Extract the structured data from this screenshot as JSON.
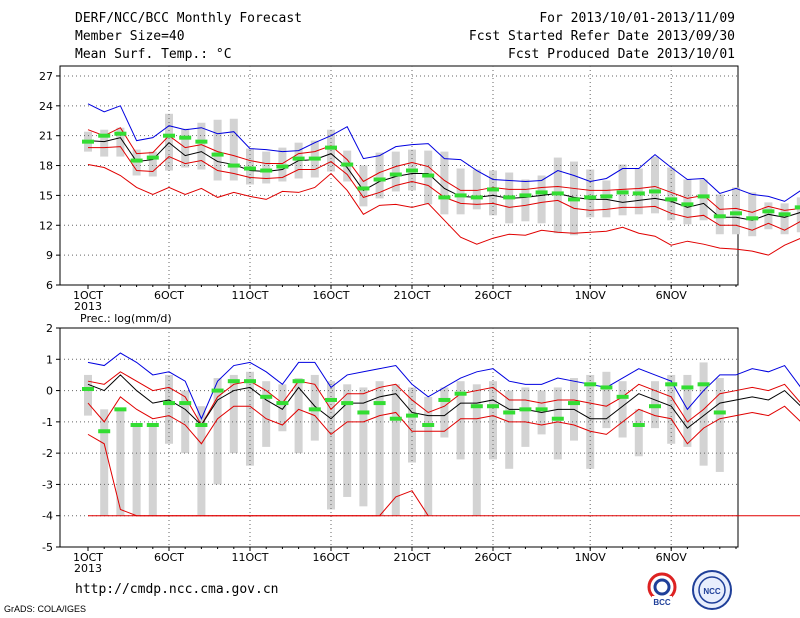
{
  "header": {
    "title": "DERF/NCC/BCC Monthly Forecast",
    "member_size": "Member Size=40",
    "variable": "Mean Surf. Temp.: °C",
    "for_period": "For 2013/10/01-2013/11/09",
    "fcst_started": "Fcst Started Refer Date 2013/09/30",
    "fcst_produced": "Fcst Produced Date 2013/10/01"
  },
  "footer": {
    "url": "http://cmdp.ncc.cma.gov.cn",
    "credit": "GrADS: COLA/IGES",
    "logos": [
      "BCC",
      "NCC"
    ]
  },
  "colors": {
    "bar": "#d3d3d3",
    "obs": "#33dd33",
    "mean": "#000000",
    "spread": "#e00000",
    "envelope": "#0000e0",
    "grid": "#666666"
  },
  "chart_data": [
    {
      "type": "line",
      "label": "",
      "x_start_day": 1,
      "x_tick_labels": [
        "1OCT",
        "6OCT",
        "11OCT",
        "16OCT",
        "21OCT",
        "26OCT",
        "1NOV",
        "6NOV"
      ],
      "x_year_label": "2013",
      "ylim": [
        6,
        28
      ],
      "yticks": [
        6,
        9,
        12,
        15,
        18,
        21,
        24,
        27
      ],
      "series": [
        {
          "role": "max",
          "values": [
            24.2,
            23.4,
            24,
            20.5,
            20.8,
            22,
            21.6,
            21.8,
            21.2,
            21.4,
            19.7,
            19.6,
            19.4,
            19.5,
            20.3,
            21,
            21.9,
            18.7,
            19,
            19.9,
            20.1,
            20.2,
            18.7,
            18.6,
            17.5,
            16.6,
            16.5,
            16.4,
            16.5,
            17.5,
            17,
            16.4,
            16.7,
            17.7,
            17.7,
            19.1,
            17.8,
            16.6,
            16.7,
            15.2,
            15.7,
            15.1,
            14.9,
            14.4,
            15.5,
            16.5
          ]
        },
        {
          "role": "upper",
          "values": [
            21.6,
            21,
            21.8,
            19.2,
            19.3,
            21,
            19.8,
            20.1,
            19.4,
            19,
            18.5,
            18.2,
            18.2,
            19.2,
            19.4,
            20,
            18.6,
            16.4,
            17.3,
            17.9,
            18.3,
            17.9,
            16.5,
            15.5,
            15.5,
            15.8,
            15.6,
            15.6,
            15.8,
            15.9,
            15.7,
            15.5,
            15.5,
            15.6,
            15.7,
            15.9,
            15.3,
            14.7,
            15,
            13.6,
            13.7,
            13.3,
            13.9,
            13.5,
            13.7,
            14.1
          ]
        },
        {
          "role": "mean",
          "values": [
            20.5,
            20.4,
            20.8,
            18.4,
            18.6,
            20.3,
            19,
            19.4,
            18.4,
            18.1,
            17.5,
            17.4,
            17.6,
            18.5,
            18.6,
            19.2,
            17.8,
            15.5,
            16.4,
            16.9,
            17.2,
            17.2,
            15.7,
            14.9,
            14.8,
            15,
            14.7,
            14.8,
            15,
            15.2,
            14.8,
            14.6,
            14.6,
            14.3,
            14.5,
            14.7,
            14.4,
            13.8,
            14.2,
            12.8,
            12.8,
            12.5,
            13.1,
            12.8,
            13.3,
            13.5
          ]
        },
        {
          "role": "lower",
          "values": [
            19.8,
            19.8,
            19.9,
            17.5,
            17.4,
            18.9,
            18.2,
            18.5,
            17.5,
            17.2,
            16.8,
            16.7,
            16.8,
            17.6,
            17.6,
            18.4,
            17.1,
            14.8,
            15.3,
            16,
            16.4,
            16,
            14.8,
            14.2,
            14.1,
            14.2,
            13.8,
            14,
            14.3,
            14.5,
            13.7,
            13.5,
            13.6,
            13.8,
            13.8,
            13.9,
            13.2,
            12.8,
            13,
            12,
            12,
            11.5,
            12.2,
            11.5,
            12.4,
            12.7
          ]
        },
        {
          "role": "min",
          "values": [
            18.1,
            17.8,
            17,
            15.8,
            15.1,
            15.8,
            15.1,
            15.7,
            14.8,
            15.3,
            14.9,
            14.6,
            15.4,
            15.3,
            15.8,
            17.2,
            15.5,
            13.1,
            14,
            14.1,
            13.8,
            14.2,
            12.5,
            10.8,
            10.1,
            10.7,
            11.1,
            11,
            11.5,
            11.3,
            11.2,
            11.3,
            11.4,
            11.8,
            11.2,
            10.9,
            10,
            10.4,
            10.1,
            9.7,
            9.6,
            9.4,
            9,
            10,
            10.7,
            10.1
          ]
        },
        {
          "role": "obs",
          "values": [
            20.4,
            21,
            21.2,
            18.5,
            18.8,
            21,
            20.8,
            20.4,
            19.1,
            18,
            17.7,
            17.5,
            17.9,
            18.7,
            18.7,
            19.8,
            18.1,
            15.7,
            16.6,
            17.1,
            17.5,
            17,
            14.8,
            15,
            14.8,
            15.6,
            14.8,
            15,
            15.3,
            15.2,
            14.6,
            14.8,
            14.9,
            15.3,
            15.2,
            15.4,
            14.6,
            14.1,
            14.9,
            12.9,
            13.2,
            12.7,
            13.4,
            13.1,
            13.8,
            13.8
          ]
        },
        {
          "role": "bar_top",
          "values": [
            21.4,
            21.6,
            21.8,
            19.6,
            19.4,
            23.2,
            21.7,
            22.3,
            22.6,
            22.7,
            19.7,
            19.4,
            19.8,
            20.3,
            20.5,
            21.6,
            19.5,
            18,
            19.3,
            19.4,
            19.6,
            19.5,
            19.4,
            17.7,
            17.6,
            17.5,
            17.3,
            16.6,
            17,
            18.8,
            18.4,
            17.6,
            16.5,
            18.1,
            17.7,
            18.9,
            17.8,
            16.6,
            16.6,
            15.1,
            15.8,
            15.3,
            14.3,
            14.2,
            14.8,
            14.7
          ]
        },
        {
          "role": "bar_bottom",
          "values": [
            19.4,
            18.9,
            18.9,
            17,
            16.9,
            17.5,
            17.8,
            17.6,
            16.5,
            16.5,
            16.1,
            16.2,
            16.4,
            16.7,
            16.8,
            17.4,
            16.4,
            13.9,
            14.7,
            15.4,
            15.5,
            14.1,
            13.1,
            13.1,
            13.6,
            13,
            12.2,
            12.4,
            12.2,
            11.2,
            11,
            12.8,
            12.8,
            13,
            13.1,
            13.2,
            12.5,
            12.1,
            12.5,
            11.1,
            11.1,
            10.9,
            11.6,
            11.1,
            11.3,
            11.4
          ]
        }
      ]
    },
    {
      "type": "line",
      "label": "Prec.: log(mm/d)",
      "x_start_day": 1,
      "x_tick_labels": [
        "1OCT",
        "6OCT",
        "11OCT",
        "16OCT",
        "21OCT",
        "26OCT",
        "1NOV",
        "6NOV"
      ],
      "x_year_label": "2013",
      "ylim": [
        -5,
        2
      ],
      "yticks": [
        -5,
        -4,
        -3,
        -2,
        -1,
        0,
        1,
        2
      ],
      "series": [
        {
          "role": "max",
          "values": [
            0.9,
            0.8,
            1.2,
            0.9,
            0.5,
            0.6,
            0.3,
            -0.9,
            0.3,
            0.8,
            0.9,
            0.6,
            0.2,
            0.9,
            0.9,
            0.1,
            0.5,
            0.6,
            0.7,
            0.8,
            0.2,
            -0.2,
            0.1,
            0.4,
            0.6,
            0.7,
            0.3,
            0.2,
            0.2,
            0.4,
            0.3,
            0.2,
            0.1,
            0.4,
            0.7,
            0.5,
            0.3,
            -0.6,
            0,
            0.5,
            0.5,
            0.7,
            0.6,
            0.8,
            0.1
          ]
        },
        {
          "role": "upper",
          "values": [
            0.3,
            0.2,
            0.6,
            0.3,
            0,
            0.1,
            -0.2,
            -1.1,
            -0.2,
            0.2,
            0.3,
            0,
            -0.4,
            0.3,
            0.2,
            -0.6,
            -0.1,
            -0.1,
            0.1,
            0.2,
            -0.3,
            -0.7,
            -0.5,
            -0.1,
            0,
            0.1,
            -0.3,
            -0.3,
            -0.4,
            -0.3,
            -0.3,
            -0.4,
            -0.5,
            -0.2,
            0.2,
            0,
            -0.2,
            -1,
            -0.6,
            -0.1,
            0,
            0.1,
            0,
            0.2,
            -0.4
          ]
        },
        {
          "role": "mean",
          "values": [
            0.2,
            0,
            0.5,
            0,
            -0.4,
            -0.3,
            -0.6,
            -1.1,
            -0.3,
            0,
            0.1,
            -0.3,
            -0.6,
            0.1,
            -0.5,
            -0.9,
            -0.4,
            -0.4,
            -0.2,
            -0.1,
            -0.7,
            -0.8,
            -0.8,
            -0.4,
            -0.4,
            -0.3,
            -0.6,
            -0.6,
            -0.7,
            -0.6,
            -0.6,
            -0.9,
            -0.9,
            -0.5,
            -0.1,
            -0.3,
            -0.5,
            -1.2,
            -0.8,
            -0.4,
            -0.3,
            -0.2,
            -0.3,
            0,
            -0.5
          ]
        },
        {
          "role": "lower",
          "values": [
            -0.4,
            -1,
            -0.2,
            -0.6,
            -0.9,
            -0.8,
            -1.1,
            -1.7,
            -0.9,
            -0.5,
            -0.5,
            -0.9,
            -1.1,
            -0.6,
            -0.8,
            -1.4,
            -1,
            -1,
            -0.8,
            -0.7,
            -1.3,
            -1.3,
            -1.3,
            -0.9,
            -0.9,
            -0.8,
            -1,
            -1,
            -1.1,
            -1,
            -1.1,
            -1.3,
            -1.4,
            -1,
            -0.6,
            -0.8,
            -0.9,
            -1.7,
            -1.2,
            -0.9,
            -0.8,
            -0.7,
            -0.8,
            -0.5,
            -1
          ]
        },
        {
          "role": "lower_drop",
          "values": [
            -1.4,
            -1.7,
            -3.8,
            -4,
            -4,
            -4,
            -4,
            -4,
            -4,
            -4,
            -4,
            -4,
            -4,
            -4,
            -4,
            -4,
            -4,
            -4,
            -4,
            -3.4,
            -3.2,
            -4
          ]
        },
        {
          "role": "min",
          "values": [
            -4,
            -4,
            -4,
            -4,
            -4,
            -4,
            -4,
            -4,
            -4,
            -4,
            -4,
            -4,
            -4,
            -4,
            -4,
            -4,
            -4,
            -4,
            -4,
            -4,
            -4,
            -4,
            -4,
            -4,
            -4,
            -4,
            -4,
            -4,
            -4,
            -4,
            -4,
            -4,
            -4,
            -4,
            -4,
            -4,
            -4,
            -4,
            -4,
            -4,
            -4,
            -4,
            -4,
            -4,
            -4
          ]
        },
        {
          "role": "obs",
          "values": [
            0.05,
            -1.3,
            -0.6,
            -1.1,
            -1.1,
            -0.4,
            -0.4,
            -1.1,
            0,
            0.3,
            0.3,
            -0.2,
            -0.4,
            0.3,
            -0.6,
            -0.3,
            -0.4,
            -0.7,
            -0.4,
            -0.9,
            -0.8,
            -1.1,
            -0.3,
            -0.1,
            -0.5,
            -0.5,
            -0.7,
            -0.6,
            -0.6,
            -0.9,
            -0.4,
            0.2,
            0.1,
            -0.2,
            -1.1,
            -0.5,
            0.2,
            0.1,
            0.2,
            -0.7
          ]
        },
        {
          "role": "bar_top",
          "values": [
            0.5,
            -0.6,
            -0.6,
            -1.1,
            -1.1,
            0.5,
            0,
            -0.5,
            0.4,
            0.5,
            0.6,
            0.3,
            0.2,
            0.4,
            0.5,
            0.3,
            0.2,
            0.1,
            0.3,
            0.2,
            0.1,
            -0.2,
            0.1,
            0.3,
            0.2,
            0.3,
            0,
            0.1,
            0,
            0.1,
            0.4,
            0.5,
            0.6,
            0.3,
            -0.6,
            0.3,
            0.5,
            0.5,
            0.9,
            0.4
          ]
        },
        {
          "role": "bar_bottom",
          "values": [
            -0.8,
            -4,
            -4,
            -4,
            -4,
            -1.7,
            -2,
            -4,
            -3,
            -2,
            -2.4,
            -1.8,
            -1.3,
            -2,
            -1.6,
            -3.8,
            -3.4,
            -3.7,
            -4,
            -4,
            -2.3,
            -4,
            -1.5,
            -2.2,
            -4,
            -2.2,
            -2.5,
            -1.8,
            -1.4,
            -2.2,
            -1.6,
            -2.5,
            -1.2,
            -1.5,
            -2.1,
            -1.2,
            -1.7,
            -1.8,
            -2.4,
            -2.6
          ]
        }
      ]
    }
  ]
}
